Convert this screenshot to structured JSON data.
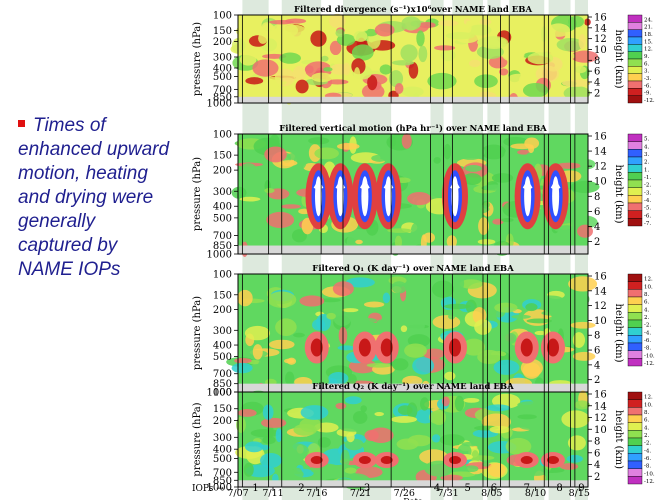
{
  "bullet": {
    "text": "Times of enhanced upward motion, heating and drying were generally captured by NAME IOPs"
  },
  "colors": {
    "bullet_text": "#1f1f8f",
    "bullet_square": "#e01010",
    "iop_band": "#dde9dd"
  },
  "chart_data": [
    {
      "type": "heatmap",
      "title": "Filtered divergence (s⁻¹)x10⁶over NAME land EBA",
      "ylabel": "pressure (hPa)",
      "y2label": "height (km)",
      "yticks": [
        "100",
        "150",
        "200",
        "300",
        "400",
        "500",
        "700",
        "850",
        "1000"
      ],
      "y2ticks": [
        "16",
        "14",
        "12",
        "10",
        "8",
        "6",
        "4",
        "2"
      ],
      "legend": [
        "24.",
        "21.",
        "18.",
        "15.",
        "12.",
        "9.",
        "6.",
        "3.",
        "-3.",
        "-6.",
        "-9.",
        "-12."
      ]
    },
    {
      "type": "heatmap",
      "title": "Filtered vertical motion (hPa hr⁻¹)  over NAME land EBA",
      "ylabel": "pressure (hPa)",
      "y2label": "height (km)",
      "yticks": [
        "100",
        "150",
        "200",
        "300",
        "400",
        "500",
        "700",
        "850",
        "1000"
      ],
      "y2ticks": [
        "16",
        "14",
        "12",
        "10",
        "8",
        "6",
        "4",
        "2"
      ],
      "legend": [
        "5.",
        "4.",
        "3.",
        "2.",
        "1.",
        "-1.",
        "-2.",
        "-3.",
        "-4.",
        "-5.",
        "-6.",
        "-7."
      ]
    },
    {
      "type": "heatmap",
      "title": "Filtered Q₁  (K day⁻¹)  over NAME land EBA",
      "ylabel": "pressure (hPa)",
      "y2label": "height (km)",
      "yticks": [
        "100",
        "150",
        "200",
        "300",
        "400",
        "500",
        "700",
        "850",
        "1000"
      ],
      "y2ticks": [
        "16",
        "14",
        "12",
        "10",
        "8",
        "6",
        "4",
        "2"
      ],
      "legend": [
        "12.",
        "10.",
        "8.",
        "6.",
        "4.",
        "2.",
        "-2.",
        "-4.",
        "-6.",
        "-8.",
        "-10.",
        "-12."
      ]
    },
    {
      "type": "heatmap",
      "title": "Filtered Q₂  (K day⁻¹)  over NAME land EBA",
      "ylabel": "pressure (hPa)",
      "y2label": "height (km)",
      "yticks": [
        "100",
        "150",
        "200",
        "300",
        "400",
        "500",
        "700",
        "850",
        "1000"
      ],
      "y2ticks": [
        "16",
        "14",
        "12",
        "10",
        "8",
        "6",
        "4",
        "2"
      ],
      "legend": [
        "12.",
        "10.",
        "8.",
        "6.",
        "4.",
        "2.",
        "-2.",
        "-4.",
        "-6.",
        "-8.",
        "-10.",
        "-12."
      ]
    }
  ],
  "x_axis": {
    "label": "Date",
    "ticks": [
      "7/07",
      "7/11",
      "7/16",
      "7/21",
      "7/26",
      "7/31",
      "8/05",
      "8/10",
      "8/15"
    ],
    "tick_days": [
      0,
      4,
      9,
      14,
      19,
      24,
      29,
      34,
      39
    ]
  },
  "iops": {
    "label": "IOPs →",
    "items": [
      {
        "label": "1",
        "start": 0.5,
        "end": 3.5
      },
      {
        "label": "2",
        "start": 5,
        "end": 9.5
      },
      {
        "label": "3",
        "start": 12,
        "end": 17.5
      },
      {
        "label": "4",
        "start": 22,
        "end": 23.5
      },
      {
        "label": "5",
        "start": 24.5,
        "end": 28
      },
      {
        "label": "6",
        "start": 28.5,
        "end": 30
      },
      {
        "label": "7",
        "start": 31,
        "end": 35
      },
      {
        "label": "8",
        "start": 35.5,
        "end": 38
      },
      {
        "label": "9",
        "start": 38.5,
        "end": 40
      }
    ]
  },
  "upward_motion_days": [
    9.2,
    11.7,
    14.5,
    17.2,
    24.8,
    33.1,
    36.3
  ]
}
